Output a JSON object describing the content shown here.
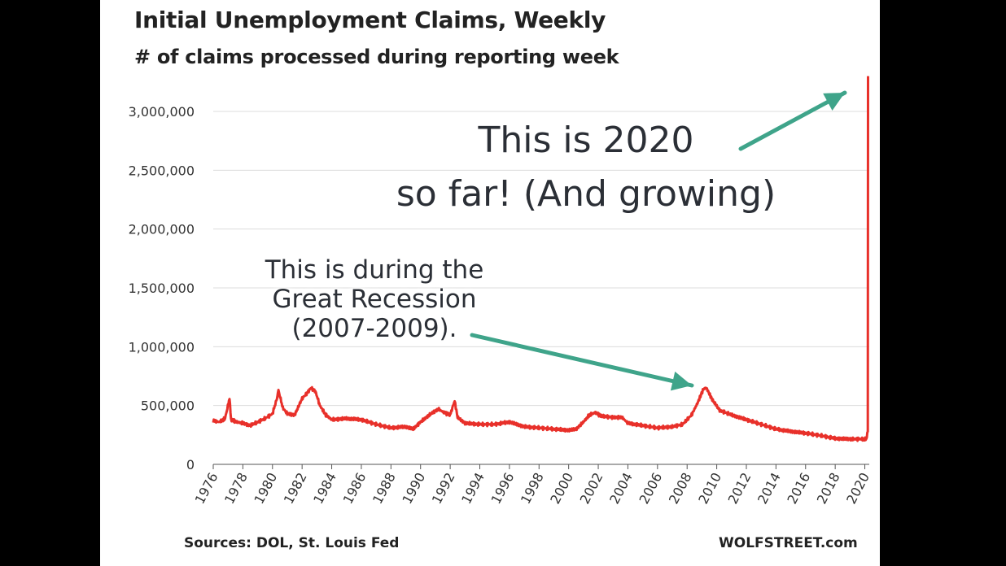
{
  "title": "Initial Unemployment Claims, Weekly",
  "subtitle": "# of claims processed during reporting week",
  "source": "Sources: DOL, St. Louis Fed",
  "brand": "WOLFSTREET.com",
  "annotations": {
    "year_2020": "This is 2020\nso far! (And growing)",
    "great_recession": "This is during the\nGreat Recession\n(2007-2009)."
  },
  "colors": {
    "line": "#e8302a",
    "arrow": "#3fa48a",
    "grid": "#dcdcdc",
    "axis": "#555555"
  },
  "chart_data": {
    "type": "line",
    "title": "Initial Unemployment Claims, Weekly",
    "subtitle": "# of claims processed during reporting week",
    "xlabel": "",
    "ylabel": "",
    "xlim": [
      1976,
      2020.3
    ],
    "ylim": [
      0,
      3000000
    ],
    "yticks": [
      0,
      500000,
      1000000,
      1500000,
      2000000,
      2500000,
      3000000
    ],
    "ytick_labels": [
      "0",
      "500,000",
      "1,000,000",
      "1,500,000",
      "2,000,000",
      "2,500,000",
      "3,000,000"
    ],
    "xticks": [
      "1976",
      "1978",
      "1980",
      "1982",
      "1984",
      "1986",
      "1988",
      "1990",
      "1992",
      "1994",
      "1996",
      "1998",
      "2000",
      "2002",
      "2004",
      "2006",
      "2008",
      "2010",
      "2012",
      "2014",
      "2016",
      "2018",
      "2020"
    ],
    "grid": true,
    "legend": "none",
    "series": [
      {
        "points": [
          [
            1976.0,
            370000
          ],
          [
            1976.4,
            360000
          ],
          [
            1976.8,
            390000
          ],
          [
            1977.1,
            560000
          ],
          [
            1977.2,
            380000
          ],
          [
            1977.6,
            360000
          ],
          [
            1978.0,
            350000
          ],
          [
            1978.5,
            330000
          ],
          [
            1979.0,
            360000
          ],
          [
            1979.5,
            390000
          ],
          [
            1980.0,
            430000
          ],
          [
            1980.3,
            560000
          ],
          [
            1980.4,
            630000
          ],
          [
            1980.7,
            480000
          ],
          [
            1981.0,
            430000
          ],
          [
            1981.5,
            420000
          ],
          [
            1982.0,
            560000
          ],
          [
            1982.3,
            600000
          ],
          [
            1982.6,
            650000
          ],
          [
            1982.9,
            620000
          ],
          [
            1983.2,
            500000
          ],
          [
            1983.6,
            420000
          ],
          [
            1984.0,
            380000
          ],
          [
            1985.0,
            390000
          ],
          [
            1986.0,
            380000
          ],
          [
            1987.0,
            340000
          ],
          [
            1988.0,
            310000
          ],
          [
            1989.0,
            320000
          ],
          [
            1989.5,
            300000
          ],
          [
            1990.0,
            360000
          ],
          [
            1990.7,
            430000
          ],
          [
            1991.2,
            470000
          ],
          [
            1991.6,
            440000
          ],
          [
            1992.0,
            420000
          ],
          [
            1992.3,
            540000
          ],
          [
            1992.5,
            400000
          ],
          [
            1993.0,
            350000
          ],
          [
            1994.0,
            340000
          ],
          [
            1995.0,
            340000
          ],
          [
            1996.0,
            360000
          ],
          [
            1997.0,
            320000
          ],
          [
            1998.0,
            310000
          ],
          [
            1999.0,
            300000
          ],
          [
            2000.0,
            290000
          ],
          [
            2000.5,
            300000
          ],
          [
            2001.0,
            360000
          ],
          [
            2001.4,
            420000
          ],
          [
            2001.8,
            440000
          ],
          [
            2002.2,
            410000
          ],
          [
            2003.0,
            400000
          ],
          [
            2003.6,
            400000
          ],
          [
            2004.0,
            350000
          ],
          [
            2005.0,
            330000
          ],
          [
            2006.0,
            310000
          ],
          [
            2007.0,
            320000
          ],
          [
            2007.7,
            340000
          ],
          [
            2008.3,
            420000
          ],
          [
            2008.7,
            520000
          ],
          [
            2009.1,
            640000
          ],
          [
            2009.3,
            650000
          ],
          [
            2009.7,
            550000
          ],
          [
            2010.2,
            460000
          ],
          [
            2011.0,
            420000
          ],
          [
            2012.0,
            380000
          ],
          [
            2013.0,
            340000
          ],
          [
            2014.0,
            300000
          ],
          [
            2015.0,
            280000
          ],
          [
            2016.0,
            265000
          ],
          [
            2017.0,
            245000
          ],
          [
            2018.0,
            220000
          ],
          [
            2019.0,
            215000
          ],
          [
            2019.9,
            215000
          ],
          [
            2020.1,
            215000
          ],
          [
            2020.2,
            280000
          ],
          [
            2020.22,
            3300000
          ]
        ]
      }
    ]
  }
}
